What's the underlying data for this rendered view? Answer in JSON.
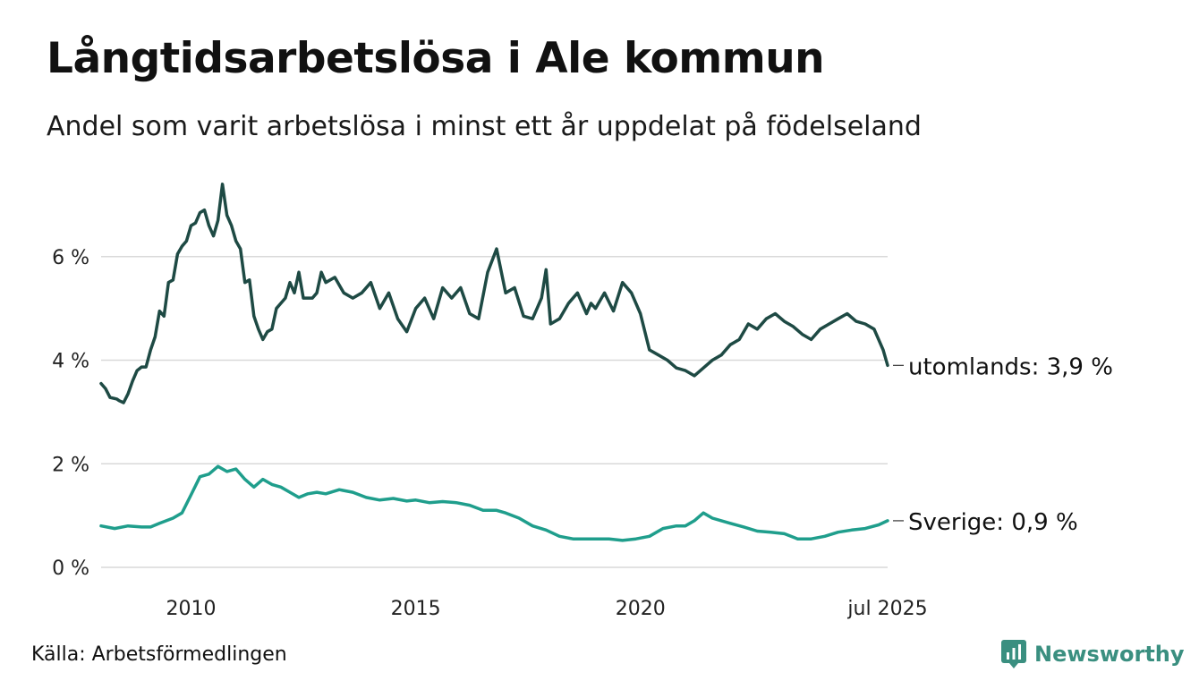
{
  "title": "Långtidsarbetslösa i Ale kommun",
  "subtitle": "Andel som varit arbetslösa i minst ett år uppdelat på födelseland",
  "source": "Källa: Arbetsförmedlingen",
  "brand": "Newsworthy",
  "colors": {
    "utomlands": "#1e4a44",
    "sverige": "#1f9e8c",
    "grid": "#d9d9d9",
    "brand": "#3a8f80"
  },
  "chart_data": {
    "type": "line",
    "ylim": [
      0,
      7.5
    ],
    "xlim": [
      2008.0,
      2025.5
    ],
    "y_ticks": [
      {
        "value": 0,
        "label": "0 %"
      },
      {
        "value": 2,
        "label": "2 %"
      },
      {
        "value": 4,
        "label": "4 %"
      },
      {
        "value": 6,
        "label": "6 %"
      }
    ],
    "x_ticks": [
      {
        "value": 2010,
        "label": "2010"
      },
      {
        "value": 2015,
        "label": "2015"
      },
      {
        "value": 2020,
        "label": "2020"
      },
      {
        "value": 2025.5,
        "label": "jul 2025"
      }
    ],
    "grid": true,
    "series": [
      {
        "name": "utomlands",
        "end_label": "utomlands: 3,9 %",
        "x": [
          2008.0,
          2008.1,
          2008.2,
          2008.35,
          2008.4,
          2008.5,
          2008.6,
          2008.7,
          2008.8,
          2008.9,
          2009.0,
          2009.1,
          2009.2,
          2009.3,
          2009.4,
          2009.5,
          2009.6,
          2009.7,
          2009.8,
          2009.9,
          2010.0,
          2010.1,
          2010.2,
          2010.3,
          2010.4,
          2010.5,
          2010.6,
          2010.7,
          2010.8,
          2010.9,
          2011.0,
          2011.1,
          2011.2,
          2011.3,
          2011.4,
          2011.5,
          2011.6,
          2011.7,
          2011.8,
          2011.9,
          2012.0,
          2012.1,
          2012.2,
          2012.3,
          2012.4,
          2012.5,
          2012.6,
          2012.7,
          2012.8,
          2012.9,
          2013.0,
          2013.2,
          2013.4,
          2013.6,
          2013.8,
          2014.0,
          2014.2,
          2014.4,
          2014.6,
          2014.8,
          2015.0,
          2015.2,
          2015.4,
          2015.6,
          2015.8,
          2016.0,
          2016.2,
          2016.4,
          2016.6,
          2016.8,
          2017.0,
          2017.2,
          2017.4,
          2017.6,
          2017.8,
          2017.9,
          2018.0,
          2018.2,
          2018.4,
          2018.6,
          2018.8,
          2018.9,
          2019.0,
          2019.2,
          2019.4,
          2019.6,
          2019.8,
          2020.0,
          2020.2,
          2020.4,
          2020.6,
          2020.8,
          2021.0,
          2021.2,
          2021.4,
          2021.6,
          2021.8,
          2022.0,
          2022.2,
          2022.4,
          2022.6,
          2022.8,
          2023.0,
          2023.2,
          2023.4,
          2023.6,
          2023.8,
          2024.0,
          2024.2,
          2024.4,
          2024.6,
          2024.8,
          2025.0,
          2025.2,
          2025.4,
          2025.5
        ],
        "values": [
          3.55,
          3.45,
          3.28,
          3.25,
          3.22,
          3.18,
          3.35,
          3.6,
          3.8,
          3.87,
          3.87,
          4.2,
          4.45,
          4.95,
          4.85,
          5.5,
          5.55,
          6.05,
          6.2,
          6.3,
          6.6,
          6.65,
          6.85,
          6.9,
          6.6,
          6.4,
          6.7,
          7.4,
          6.8,
          6.6,
          6.3,
          6.15,
          5.5,
          5.55,
          4.85,
          4.6,
          4.4,
          4.55,
          4.6,
          5.0,
          5.1,
          5.2,
          5.5,
          5.3,
          5.7,
          5.2,
          5.2,
          5.2,
          5.3,
          5.7,
          5.5,
          5.6,
          5.3,
          5.2,
          5.3,
          5.5,
          5.0,
          5.3,
          4.8,
          4.55,
          5.0,
          5.2,
          4.8,
          5.4,
          5.2,
          5.4,
          4.9,
          4.8,
          5.7,
          6.15,
          5.3,
          5.4,
          4.85,
          4.8,
          5.2,
          5.75,
          4.7,
          4.8,
          5.1,
          5.3,
          4.9,
          5.1,
          5.0,
          5.3,
          4.95,
          5.5,
          5.3,
          4.9,
          4.2,
          4.1,
          4.0,
          3.85,
          3.8,
          3.7,
          3.85,
          4.0,
          4.1,
          4.3,
          4.4,
          4.7,
          4.6,
          4.8,
          4.9,
          4.75,
          4.65,
          4.5,
          4.4,
          4.6,
          4.7,
          4.8,
          4.9,
          4.75,
          4.7,
          4.6,
          4.2,
          3.9
        ],
        "note_unused": ""
      },
      {
        "name": "Sverige",
        "end_label": "Sverige: 0,9 %",
        "x": [
          2008.0,
          2008.3,
          2008.6,
          2008.9,
          2009.1,
          2009.3,
          2009.6,
          2009.8,
          2010.0,
          2010.2,
          2010.4,
          2010.6,
          2010.8,
          2011.0,
          2011.2,
          2011.4,
          2011.6,
          2011.8,
          2012.0,
          2012.2,
          2012.4,
          2012.6,
          2012.8,
          2013.0,
          2013.3,
          2013.6,
          2013.9,
          2014.2,
          2014.5,
          2014.8,
          2015.0,
          2015.3,
          2015.6,
          2015.9,
          2016.2,
          2016.5,
          2016.8,
          2017.0,
          2017.3,
          2017.6,
          2017.9,
          2018.2,
          2018.5,
          2018.8,
          2019.0,
          2019.3,
          2019.6,
          2019.9,
          2020.2,
          2020.5,
          2020.8,
          2021.0,
          2021.2,
          2021.4,
          2021.6,
          2021.8,
          2022.0,
          2022.3,
          2022.6,
          2022.9,
          2023.2,
          2023.5,
          2023.8,
          2024.1,
          2024.4,
          2024.7,
          2025.0,
          2025.3,
          2025.5
        ],
        "values": [
          0.8,
          0.75,
          0.8,
          0.78,
          0.78,
          0.85,
          0.95,
          1.05,
          1.4,
          1.75,
          1.8,
          1.95,
          1.85,
          1.9,
          1.7,
          1.55,
          1.7,
          1.6,
          1.55,
          1.45,
          1.35,
          1.42,
          1.45,
          1.42,
          1.5,
          1.45,
          1.35,
          1.3,
          1.33,
          1.28,
          1.3,
          1.25,
          1.27,
          1.25,
          1.2,
          1.1,
          1.1,
          1.05,
          0.95,
          0.8,
          0.72,
          0.6,
          0.55,
          0.55,
          0.55,
          0.55,
          0.52,
          0.55,
          0.6,
          0.75,
          0.8,
          0.8,
          0.9,
          1.05,
          0.95,
          0.9,
          0.85,
          0.78,
          0.7,
          0.68,
          0.65,
          0.55,
          0.55,
          0.6,
          0.68,
          0.72,
          0.75,
          0.82,
          0.9
        ]
      }
    ]
  }
}
